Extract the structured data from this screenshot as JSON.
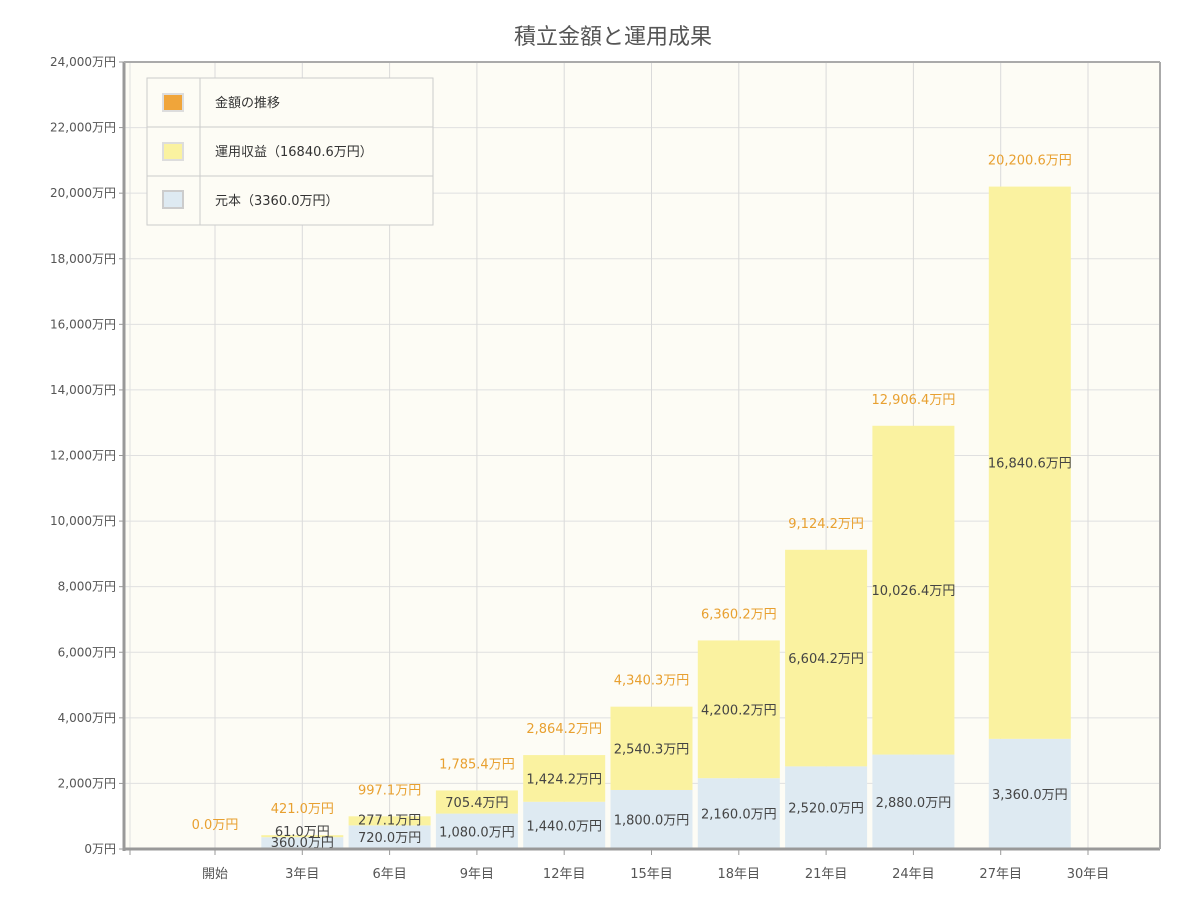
{
  "chart_data": {
    "type": "bar",
    "stacked": true,
    "title": "積立金額と運用成果",
    "xlabel": "",
    "ylabel": "",
    "ylim": [
      0,
      24000
    ],
    "yticks": [
      0,
      2000,
      4000,
      6000,
      8000,
      10000,
      12000,
      14000,
      16000,
      18000,
      20000,
      22000,
      24000
    ],
    "ytick_labels": [
      "0万円",
      "2,000万円",
      "4,000万円",
      "6,000万円",
      "8,000万円",
      "10,000万円",
      "12,000万円",
      "14,000万円",
      "16,000万円",
      "18,000万円",
      "20,000万円",
      "22,000万円",
      "24,000万円"
    ],
    "xticks": [
      0,
      3,
      6,
      9,
      12,
      15,
      18,
      21,
      24,
      27,
      30
    ],
    "xtick_labels": [
      "開始",
      "3年目",
      "6年目",
      "9年目",
      "12年目",
      "15年目",
      "18年目",
      "21年目",
      "24年目",
      "27年目",
      "30年目"
    ],
    "x": [
      0,
      3,
      6,
      9,
      12,
      15,
      18,
      21,
      24,
      28
    ],
    "series": [
      {
        "name": "元本（3360.0万円）",
        "color": "#deeaf2",
        "values": [
          0,
          360,
          720,
          1080,
          1440,
          1800,
          2160,
          2520,
          2880,
          3360
        ],
        "labels": [
          "",
          "360.0万円",
          "720.0万円",
          "1,080.0万円",
          "1,440.0万円",
          "1,800.0万円",
          "2,160.0万円",
          "2,520.0万円",
          "2,880.0万円",
          "3,360.0万円"
        ]
      },
      {
        "name": "運用収益（16840.6万円）",
        "color": "#faf2a0",
        "values": [
          0,
          61,
          277.1,
          705.4,
          1424.2,
          2540.3,
          4200.2,
          6604.2,
          10026.4,
          16840.6
        ],
        "labels": [
          "",
          "61.0万円",
          "277.1万円",
          "705.4万円",
          "1,424.2万円",
          "2,540.3万円",
          "4,200.2万円",
          "6,604.2万円",
          "10,026.4万円",
          "16,840.6万円"
        ]
      }
    ],
    "totals": {
      "name": "金額の推移",
      "color": "#f0a53a",
      "values": [
        0,
        421,
        997.1,
        1785.4,
        2864.2,
        4340.3,
        6360.2,
        9124.2,
        12906.4,
        20200.6
      ],
      "labels": [
        "0.0万円",
        "421.0万円",
        "997.1万円",
        "1,785.4万円",
        "2,864.2万円",
        "4,340.3万円",
        "6,360.2万円",
        "9,124.2万円",
        "12,906.4万円",
        "20,200.6万円"
      ]
    },
    "legend": {
      "position": "top-left",
      "entries": [
        "金額の推移",
        "運用収益（16840.6万円）",
        "元本（3360.0万円）"
      ]
    },
    "grid": true
  }
}
